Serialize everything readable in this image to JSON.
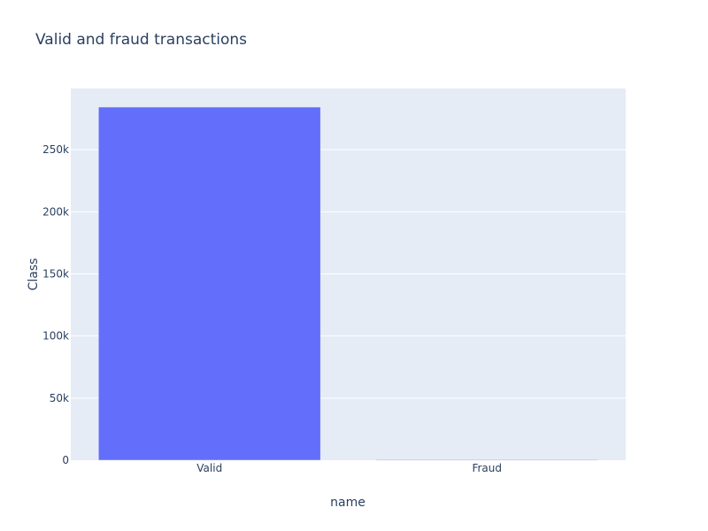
{
  "chart_data": {
    "type": "bar",
    "title": "Valid and fraud transactions",
    "xlabel": "name",
    "ylabel": "Class",
    "categories": [
      "Valid",
      "Fraud"
    ],
    "values": [
      284315,
      492
    ],
    "ylim": [
      0,
      299280
    ],
    "yticks": [
      0,
      50000,
      100000,
      150000,
      200000,
      250000
    ],
    "ytick_labels": [
      "0",
      "50k",
      "100k",
      "150k",
      "200k",
      "250k"
    ],
    "grid": true,
    "legend": "none",
    "colors": {
      "bar": "#636efa",
      "plot_bg": "#e5ecf6",
      "grid": "#ffffff",
      "text": "#2a3f5f"
    }
  }
}
